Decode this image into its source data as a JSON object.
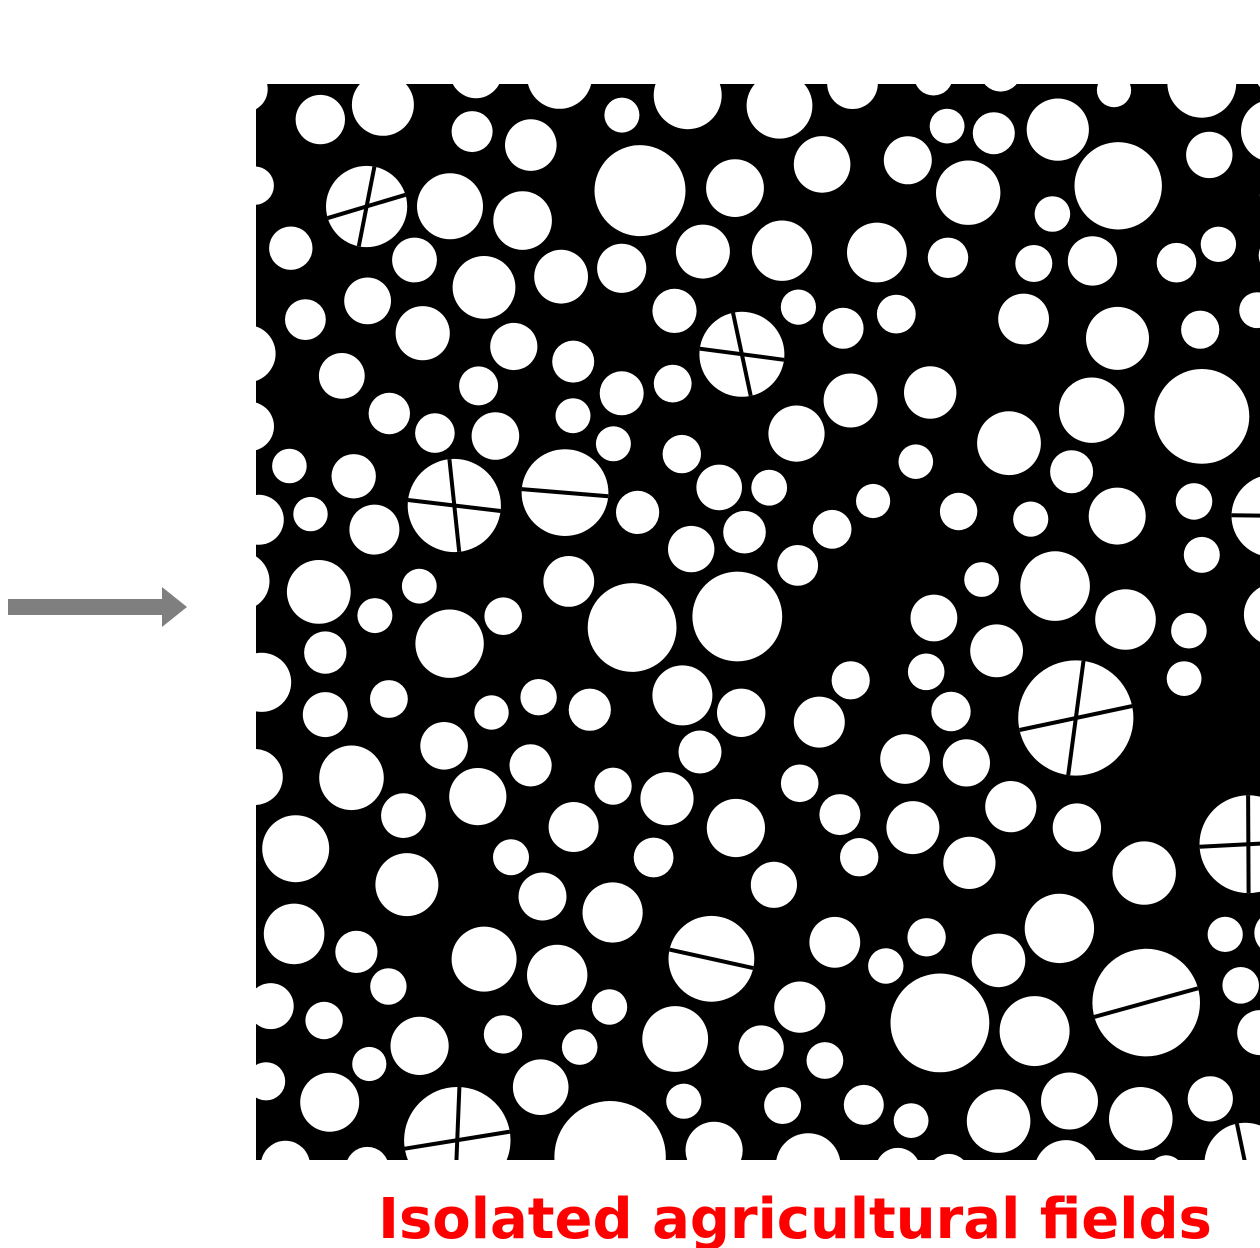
{
  "caption": "Isolated agricultural fields"
}
